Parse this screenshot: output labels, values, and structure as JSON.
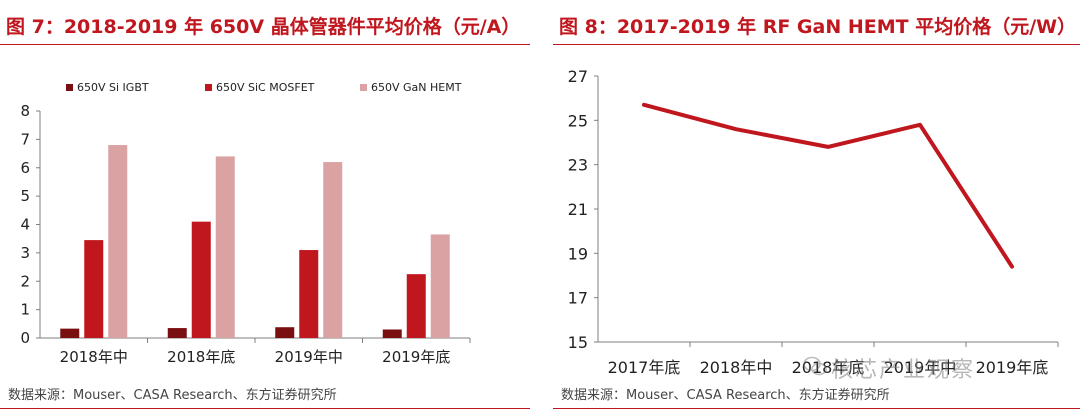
{
  "figures": [
    {
      "title": "图 7：2018-2019 年 650V 晶体管器件平均价格（元/A）",
      "source": "数据来源：Mouser、CASA Research、东方证券研究所"
    },
    {
      "title": "图 8：2017-2019 年 RF GaN HEMT  平均价格（元/W）",
      "source": "数据来源：Mouser、CASA Research、东方证券研究所",
      "watermark": "核芯产业观察"
    }
  ],
  "chart_data": [
    {
      "type": "bar",
      "categories": [
        "2018年中",
        "2018年底",
        "2019年中",
        "2019年底"
      ],
      "series": [
        {
          "name": "650V Si IGBT",
          "color": "#7a0f12",
          "values": [
            0.33,
            0.35,
            0.38,
            0.3
          ]
        },
        {
          "name": "650V SiC MOSFET",
          "color": "#c0161e",
          "values": [
            3.45,
            4.1,
            3.1,
            2.25
          ]
        },
        {
          "name": "650V GaN HEMT",
          "color": "#dba2a4",
          "values": [
            6.8,
            6.4,
            6.2,
            3.65
          ]
        }
      ],
      "yticks": [
        0,
        1,
        2,
        3,
        4,
        5,
        6,
        7,
        8
      ],
      "ylim": [
        0,
        8
      ],
      "legend": "top",
      "grid": false
    },
    {
      "type": "line",
      "categories": [
        "2017年底",
        "2018年中",
        "2018年底",
        "2019年中",
        "2019年底"
      ],
      "series": [
        {
          "name": "",
          "color": "#c0161e",
          "values": [
            25.7,
            24.6,
            23.8,
            24.8,
            18.4
          ]
        }
      ],
      "yticks": [
        15,
        17,
        19,
        21,
        23,
        25,
        27
      ],
      "ylim": [
        15,
        27
      ],
      "grid": false
    }
  ]
}
